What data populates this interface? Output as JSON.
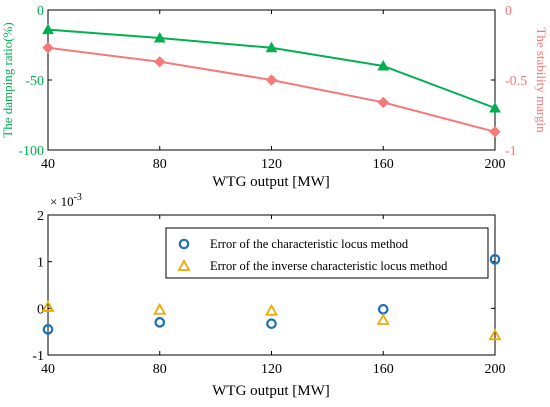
{
  "chart_data": [
    {
      "type": "line",
      "xlabel": "WTG output [MW]",
      "x": [
        40,
        80,
        120,
        160,
        200
      ],
      "xticks": [
        "40",
        "80",
        "120",
        "160",
        "200"
      ],
      "xlim": [
        40,
        200
      ],
      "ylabel_left": "The damping ratio(%)",
      "ylim_left": [
        -100,
        0
      ],
      "yticks_left": [
        "0",
        "-50",
        "-100"
      ],
      "ylabel_right": "The stability margin",
      "ylim_right": [
        -1,
        0
      ],
      "yticks_right": [
        "0",
        "-0.5",
        "-1"
      ],
      "series": [
        {
          "axis": "left",
          "marker": "triangle",
          "color": "#00b050",
          "values": [
            -14,
            -20,
            -27,
            -40,
            -70
          ]
        },
        {
          "axis": "right",
          "marker": "diamond",
          "color": "#f47a7a",
          "values": [
            -0.27,
            -0.37,
            -0.5,
            -0.66,
            -0.87
          ]
        }
      ],
      "grid": false
    },
    {
      "type": "scatter",
      "xlabel": "WTG output [MW]",
      "x": [
        40,
        80,
        120,
        160,
        200
      ],
      "xticks": [
        "40",
        "80",
        "120",
        "160",
        "200"
      ],
      "xlim": [
        40,
        200
      ],
      "ylim": [
        -1,
        2
      ],
      "yticks": [
        "2",
        "1",
        "0",
        "-1"
      ],
      "exponent_label": "× 10",
      "exponent_power": "-3",
      "legend_position": "top-right",
      "series": [
        {
          "name": "Error of the characteristic locus method",
          "marker": "circle",
          "color": "#1f6fb4",
          "values": [
            -0.45,
            -0.3,
            -0.33,
            -0.02,
            1.05
          ]
        },
        {
          "name": "Error of the inverse characteristic locus method",
          "marker": "triangle-open",
          "color": "#f0a800",
          "values": [
            0.03,
            -0.03,
            -0.05,
            -0.25,
            -0.58
          ]
        }
      ],
      "grid": false
    }
  ]
}
